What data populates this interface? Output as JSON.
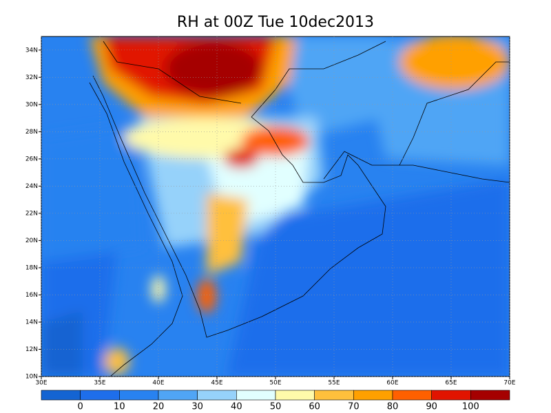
{
  "title": "RH at 00Z Tue 10dec2013",
  "map": {
    "lon_range": [
      30,
      70
    ],
    "lat_range": [
      10,
      35
    ],
    "lon_ticks": [
      {
        "value": 30,
        "label": "30E"
      },
      {
        "value": 35,
        "label": "35E"
      },
      {
        "value": 40,
        "label": "40E"
      },
      {
        "value": 45,
        "label": "45E"
      },
      {
        "value": 50,
        "label": "50E"
      },
      {
        "value": 55,
        "label": "55E"
      },
      {
        "value": 60,
        "label": "60E"
      },
      {
        "value": 65,
        "label": "65E"
      },
      {
        "value": 70,
        "label": "70E"
      }
    ],
    "lat_ticks": [
      {
        "value": 10,
        "label": "10N"
      },
      {
        "value": 12,
        "label": "12N"
      },
      {
        "value": 14,
        "label": "14N"
      },
      {
        "value": 16,
        "label": "16N"
      },
      {
        "value": 18,
        "label": "18N"
      },
      {
        "value": 20,
        "label": "20N"
      },
      {
        "value": 22,
        "label": "22N"
      },
      {
        "value": 24,
        "label": "24N"
      },
      {
        "value": 26,
        "label": "26N"
      },
      {
        "value": 28,
        "label": "28N"
      },
      {
        "value": 30,
        "label": "30N"
      },
      {
        "value": 32,
        "label": "32N"
      },
      {
        "value": 34,
        "label": "34N"
      }
    ],
    "grid": true
  },
  "colorbar": {
    "levels": [
      0,
      10,
      20,
      30,
      40,
      50,
      60,
      70,
      80,
      90,
      100
    ],
    "colors": [
      "#1464d2",
      "#1e6eeb",
      "#2882f0",
      "#50a5f5",
      "#96d2fa",
      "#e1ffff",
      "#fffaaa",
      "#ffc03c",
      "#ffa000",
      "#ff6000",
      "#e11400",
      "#a50000"
    ]
  }
}
